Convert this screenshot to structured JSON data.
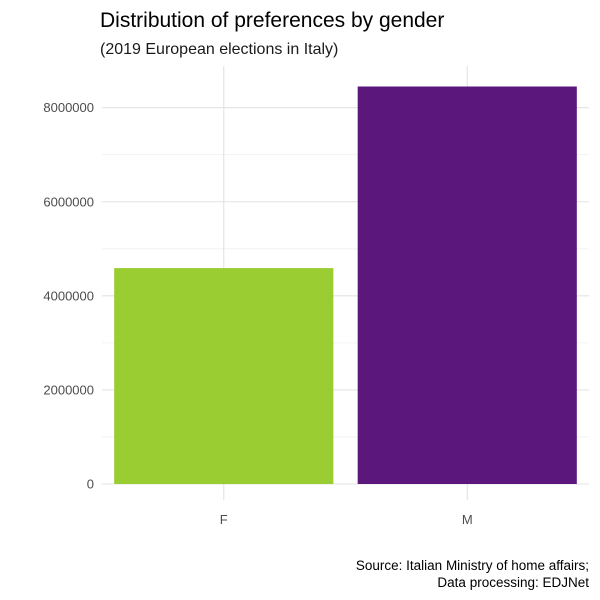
{
  "chart_data": {
    "type": "bar",
    "title": "Distribution of preferences by gender",
    "subtitle": "(2019 European elections in Italy)",
    "categories": [
      "F",
      "M"
    ],
    "values": [
      4590000,
      8450000
    ],
    "colors": [
      "#9ACD32",
      "#5B177C"
    ],
    "ylim": [
      0,
      8900000
    ],
    "yticks": [
      0,
      2000000,
      4000000,
      6000000,
      8000000
    ],
    "ytick_labels": [
      "0",
      "2000000",
      "4000000",
      "6000000",
      "8000000"
    ],
    "xlabel": "",
    "ylabel": "",
    "grid": true,
    "legend": "none",
    "caption": [
      "Source: Italian Ministry of home affairs;",
      "Data processing: EDJNet"
    ]
  }
}
